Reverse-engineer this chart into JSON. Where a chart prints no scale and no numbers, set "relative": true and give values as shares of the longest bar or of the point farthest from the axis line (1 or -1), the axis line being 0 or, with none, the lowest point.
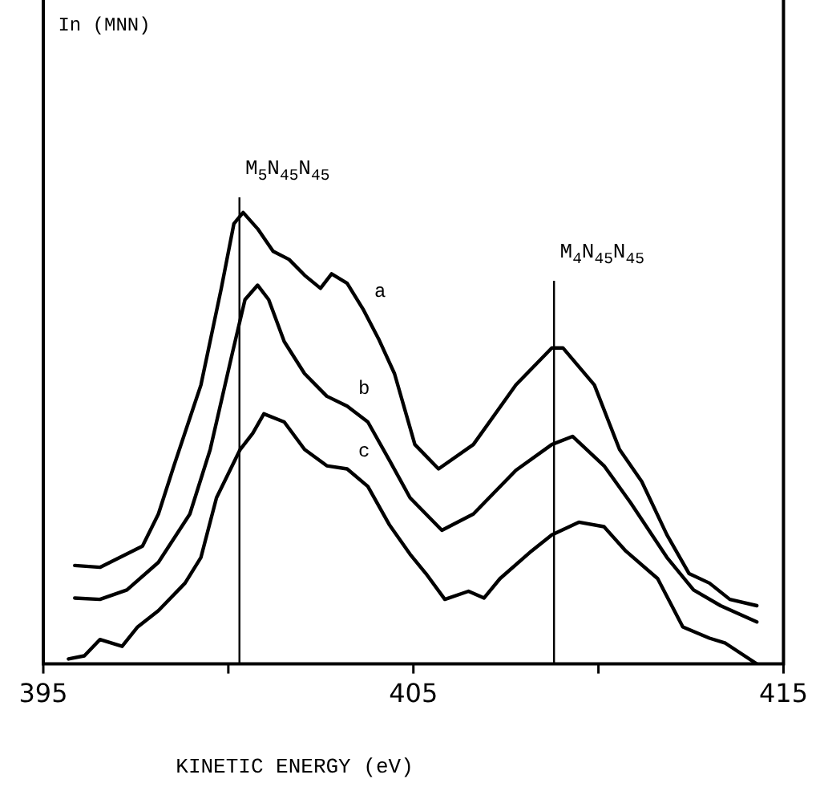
{
  "chart_data": {
    "type": "line",
    "relative": true,
    "xlabel": "KINETIC ENERGY (eV)",
    "annotations": [
      "In (MNN)"
    ],
    "xlim": [
      395,
      415
    ],
    "xticks": [
      395,
      {
        "value": 400,
        "label": null
      },
      405,
      {
        "value": 410,
        "label": null
      },
      415
    ],
    "grid": false,
    "legend": false,
    "marker": "none",
    "line_style": "solid",
    "ref_lines": [
      {
        "axis": "x",
        "value": 400.3,
        "label": "M$_{5}$N$_{45}$N$_{45}$",
        "color": "#000000"
      },
      {
        "axis": "x",
        "value": 408.8,
        "label": "M$_{4}$N$_{45}$N$_{45}$",
        "color": "#000000"
      }
    ],
    "series": [
      {
        "name": "a",
        "color": "#000000",
        "x": [
          395.85,
          396.53,
          397.68,
          398.11,
          398.53,
          399.26,
          399.81,
          400.15,
          400.4,
          400.79,
          401.21,
          401.64,
          402.06,
          402.49,
          402.79,
          403.21,
          403.64,
          404.06,
          404.49,
          405.04,
          405.68,
          406.62,
          407.77,
          408.74,
          409.04,
          409.89,
          410.57,
          411.17,
          411.85,
          412.45,
          413.0,
          413.55,
          414.28
        ],
        "values": [
          0.218,
          0.214,
          0.261,
          0.332,
          0.439,
          0.618,
          0.832,
          0.975,
          1.0,
          0.964,
          0.914,
          0.896,
          0.861,
          0.832,
          0.864,
          0.843,
          0.786,
          0.72,
          0.643,
          0.486,
          0.432,
          0.486,
          0.618,
          0.7,
          0.7,
          0.618,
          0.475,
          0.404,
          0.286,
          0.2,
          0.179,
          0.143,
          0.129
        ]
      },
      {
        "name": "b",
        "color": "#000000",
        "x": [
          395.85,
          396.53,
          397.26,
          398.11,
          398.96,
          399.51,
          400.11,
          400.45,
          400.79,
          401.09,
          401.51,
          402.06,
          402.66,
          403.21,
          403.77,
          404.36,
          404.91,
          405.77,
          406.62,
          407.77,
          408.74,
          409.3,
          410.15,
          410.87,
          411.85,
          412.57,
          413.3,
          414.28
        ],
        "values": [
          0.146,
          0.143,
          0.164,
          0.225,
          0.332,
          0.475,
          0.689,
          0.807,
          0.839,
          0.807,
          0.714,
          0.643,
          0.593,
          0.571,
          0.536,
          0.45,
          0.368,
          0.296,
          0.332,
          0.429,
          0.486,
          0.504,
          0.439,
          0.357,
          0.236,
          0.164,
          0.129,
          0.093
        ]
      },
      {
        "name": "c",
        "color": "#000000",
        "x": [
          395.68,
          396.11,
          396.53,
          397.13,
          397.55,
          398.11,
          398.83,
          399.26,
          399.68,
          400.32,
          400.66,
          400.96,
          401.51,
          402.06,
          402.66,
          403.21,
          403.77,
          404.36,
          404.91,
          405.34,
          405.85,
          406.49,
          406.91,
          407.34,
          408.19,
          408.74,
          409.47,
          410.15,
          410.74,
          411.6,
          412.28,
          413.0,
          413.43,
          414.28
        ],
        "values": [
          0.011,
          0.018,
          0.054,
          0.039,
          0.082,
          0.118,
          0.179,
          0.236,
          0.368,
          0.475,
          0.511,
          0.554,
          0.536,
          0.475,
          0.439,
          0.432,
          0.393,
          0.307,
          0.243,
          0.2,
          0.143,
          0.161,
          0.146,
          0.189,
          0.25,
          0.286,
          0.314,
          0.304,
          0.25,
          0.189,
          0.082,
          0.057,
          0.046,
          0
        ]
      }
    ]
  }
}
